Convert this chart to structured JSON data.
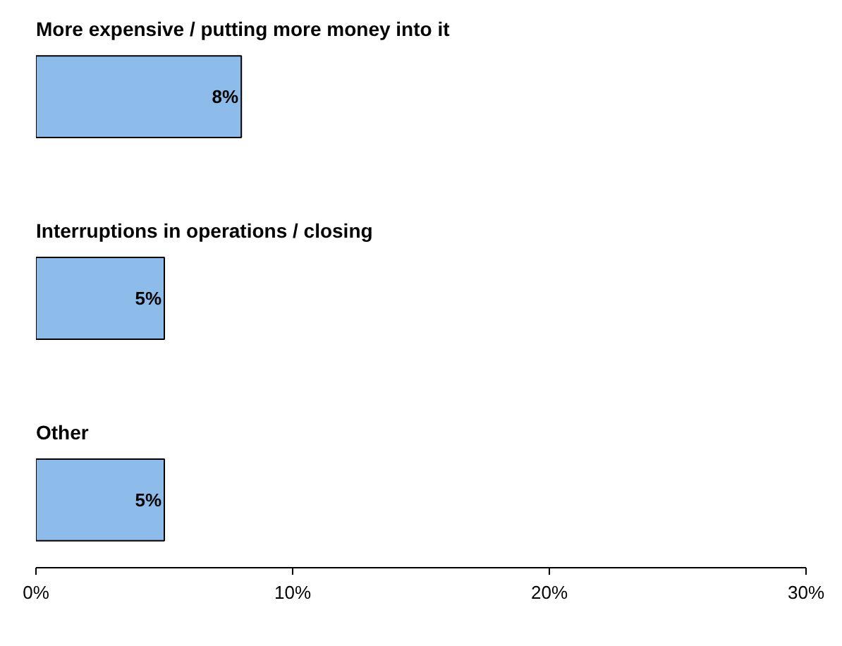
{
  "chart_data": {
    "type": "bar",
    "orientation": "horizontal",
    "categories": [
      "More expensive / putting more money into it",
      "Interruptions in operations / closing",
      "Other"
    ],
    "values": [
      8,
      5,
      5
    ],
    "value_labels": [
      "8%",
      "5%",
      "5%"
    ],
    "color": "#8dbcea",
    "xlim": [
      0,
      30
    ],
    "xticks": [
      {
        "value": 0,
        "label": "0%"
      },
      {
        "value": 10,
        "label": "10%"
      },
      {
        "value": 20,
        "label": "20%"
      },
      {
        "value": 30,
        "label": "30%"
      }
    ],
    "grid": false
  }
}
